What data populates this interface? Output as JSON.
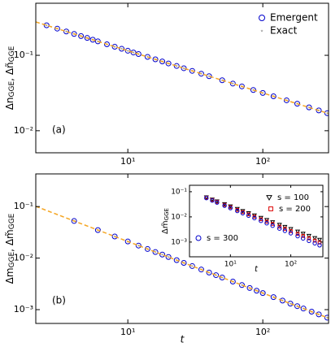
{
  "chart_data": [
    {
      "type": "scatter",
      "log_x": true,
      "log_y": true,
      "legend": "upper right",
      "annotation": "(a)",
      "y_label": [
        "Δn",
        "GGE",
        ", Δñ",
        "GGE"
      ],
      "xlim": [
        2.08,
        307
      ],
      "ylim": [
        0.0051,
        0.49
      ],
      "xticks": [
        {
          "value": 10,
          "label": "10¹"
        },
        {
          "value": 100,
          "label": "10²"
        }
      ],
      "yticks": [
        {
          "value": 0.01,
          "label": "10⁻²"
        },
        {
          "value": 0.1,
          "label": "10⁻¹"
        }
      ],
      "x": [
        2.5,
        3,
        3.5,
        4,
        4.5,
        5,
        5.5,
        6,
        7,
        8,
        9,
        10,
        11,
        12,
        14,
        16,
        18,
        20,
        23,
        26,
        30,
        35,
        40,
        50,
        60,
        70,
        85,
        100,
        120,
        150,
        180,
        220,
        260,
        300
      ],
      "series": [
        {
          "name": "Emergent",
          "color": "#0000cc",
          "marker": "circle",
          "values": [
            0.25,
            0.226,
            0.207,
            0.192,
            0.18,
            0.17,
            0.161,
            0.153,
            0.14,
            0.13,
            0.122,
            0.115,
            0.109,
            0.104,
            0.0953,
            0.0884,
            0.0828,
            0.078,
            0.0722,
            0.0674,
            0.0622,
            0.057,
            0.0529,
            0.0467,
            0.0422,
            0.0387,
            0.0347,
            0.0317,
            0.0286,
            0.0253,
            0.0228,
            0.0204,
            0.0186,
            0.0171
          ]
        },
        {
          "name": "Exact",
          "color": "#8a8a8a",
          "marker": "star",
          "values": [
            0.25,
            0.226,
            0.207,
            0.192,
            0.18,
            0.17,
            0.161,
            0.153,
            0.14,
            0.13,
            0.122,
            0.115,
            0.109,
            0.104,
            0.0953,
            0.0884,
            0.0828,
            0.078,
            0.0722,
            0.0674,
            0.0622,
            0.057,
            0.0529,
            0.0467,
            0.0422,
            0.0387,
            0.0347,
            0.0317,
            0.0286,
            0.0253,
            0.0228,
            0.0204,
            0.0186,
            0.0171
          ]
        },
        {
          "color": "#f5a623",
          "marker": "dashed",
          "x": [
            2.08,
            307
          ],
          "values": [
            0.277,
            0.0169
          ]
        }
      ]
    },
    {
      "type": "scatter",
      "log_x": true,
      "log_y": true,
      "annotation": "(b)",
      "y_label": [
        "Δm",
        "GGE",
        ", Δm̃",
        "GGE"
      ],
      "x_label": "t",
      "xlim": [
        2.08,
        307
      ],
      "ylim": [
        0.00054,
        0.43
      ],
      "xticks": [
        {
          "value": 10,
          "label": "10¹"
        },
        {
          "value": 100,
          "label": "10²"
        }
      ],
      "yticks": [
        {
          "value": 0.001,
          "label": "10⁻³"
        },
        {
          "value": 0.01,
          "label": "10⁻²"
        },
        {
          "value": 0.1,
          "label": "10⁻¹"
        }
      ],
      "x": [
        4,
        6,
        8,
        10,
        12,
        14,
        16,
        18,
        20,
        23,
        26,
        30,
        35,
        40,
        45,
        50,
        60,
        70,
        80,
        90,
        100,
        120,
        140,
        160,
        180,
        200,
        230,
        260,
        300
      ],
      "series": [
        {
          "color": "#0000cc",
          "marker": "circle",
          "values": [
            0.0525,
            0.035,
            0.0263,
            0.021,
            0.0175,
            0.015,
            0.0131,
            0.0117,
            0.0105,
            0.00913,
            0.00808,
            0.007,
            0.006,
            0.00525,
            0.00467,
            0.0042,
            0.0035,
            0.003,
            0.00263,
            0.00233,
            0.0021,
            0.00175,
            0.0015,
            0.00131,
            0.00117,
            0.00105,
            0.000913,
            0.000808,
            0.0007
          ]
        },
        {
          "color": "#8a8a8a",
          "marker": "star",
          "values": [
            0.0525,
            0.035,
            0.0263,
            0.021,
            0.0175,
            0.015,
            0.0131,
            0.0117,
            0.0105,
            0.00913,
            0.00808,
            0.007,
            0.006,
            0.00525,
            0.00467,
            0.0042,
            0.0035,
            0.003,
            0.00263,
            0.00233,
            0.0021,
            0.00175,
            0.0015,
            0.00131,
            0.00117,
            0.00105,
            0.000913,
            0.000808,
            0.0007
          ]
        },
        {
          "color": "#f5a623",
          "marker": "dashed",
          "x": [
            2.08,
            307
          ],
          "values": [
            0.101,
            0.000684
          ]
        }
      ]
    },
    {
      "type": "scatter",
      "log_x": true,
      "log_y": true,
      "legend": "inset",
      "y_label": [
        "Δm̃",
        "GGE"
      ],
      "x_label": "t",
      "xlim": [
        2.1,
        340
      ],
      "ylim": [
        0.00026,
        0.18
      ],
      "xticks": [
        {
          "value": 10,
          "label": "10¹"
        },
        {
          "value": 100,
          "label": "10²"
        }
      ],
      "yticks": [
        {
          "value": 0.001,
          "label": "10⁻³"
        },
        {
          "value": 0.01,
          "label": "10⁻²"
        },
        {
          "value": 0.1,
          "label": "10⁻¹"
        }
      ],
      "x": [
        4,
        5,
        6,
        8,
        10,
        13,
        16,
        20,
        25,
        32,
        40,
        50,
        65,
        80,
        100,
        130,
        160,
        200,
        250,
        300
      ],
      "series": [
        {
          "name": "s = 100",
          "color": "#000000",
          "marker": "triangle",
          "values": [
            0.06,
            0.0491,
            0.0416,
            0.0322,
            0.0263,
            0.0208,
            0.0172,
            0.0141,
            0.0115,
            0.00924,
            0.00756,
            0.00618,
            0.00488,
            0.00404,
            0.00331,
            0.00262,
            0.00217,
            0.00178,
            0.00145,
            0.00124
          ]
        },
        {
          "name": "s = 200",
          "color": "#dd0000",
          "marker": "square",
          "values": [
            0.058,
            0.0469,
            0.0394,
            0.03,
            0.0243,
            0.0189,
            0.0155,
            0.0126,
            0.0102,
            0.00806,
            0.0065,
            0.00527,
            0.0041,
            0.00336,
            0.00273,
            0.00212,
            0.00175,
            0.00141,
            0.00114,
            0.000957
          ]
        },
        {
          "name": "s = 300",
          "color": "#0000cc",
          "marker": "circle",
          "values": [
            0.056,
            0.0448,
            0.0373,
            0.028,
            0.0224,
            0.0172,
            0.014,
            0.0112,
            0.00896,
            0.007,
            0.0056,
            0.00448,
            0.00345,
            0.0028,
            0.00224,
            0.00172,
            0.0014,
            0.00112,
            0.000896,
            0.000747
          ]
        }
      ]
    }
  ]
}
